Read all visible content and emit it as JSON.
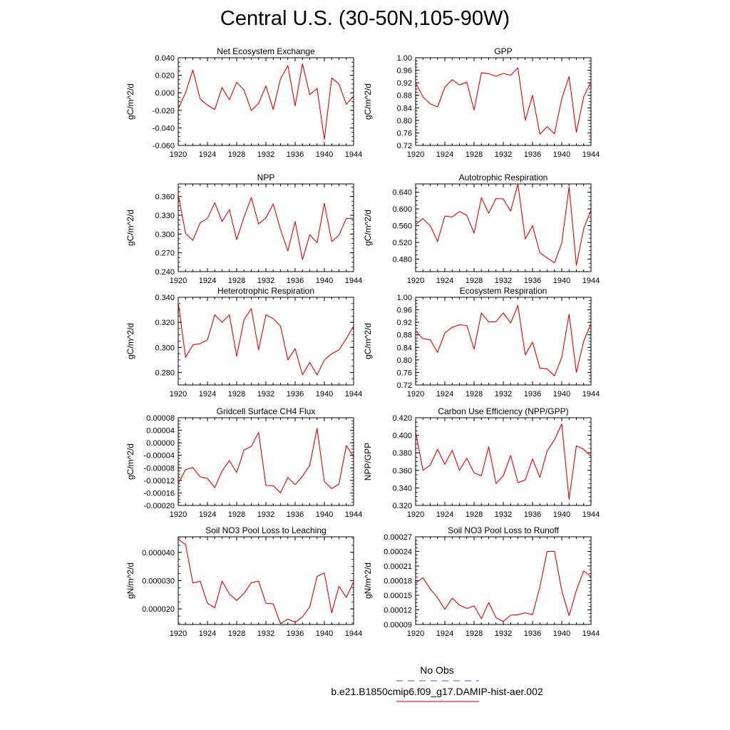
{
  "page": {
    "title": "Central U.S. (30-50N,105-90W)"
  },
  "legend": {
    "items": [
      {
        "label": "No Obs",
        "color": "#7070d8",
        "style": "dashed"
      },
      {
        "label": "b.e21.B1850cmip6.f09_g17.DAMIP-hist-aer.002",
        "color": "#e8263a",
        "style": "solid"
      }
    ]
  },
  "chart_data": [
    {
      "type": "line",
      "title": "Net Ecosystem Exchange",
      "ylabel": "gC/m^2/d",
      "xlim": [
        1920,
        1944
      ],
      "ylim": [
        -0.06,
        0.04
      ],
      "yticks": [
        "0.040",
        "0.020",
        "0.000",
        "-0.020",
        "-0.040",
        "-0.060"
      ],
      "ytick_values": [
        0.04,
        0.02,
        0.0,
        -0.02,
        -0.04,
        -0.06
      ],
      "xticks": [
        "1920",
        "1924",
        "1928",
        "1932",
        "1936",
        "1940",
        "1944"
      ],
      "x": [
        1920,
        1921,
        1922,
        1923,
        1924,
        1925,
        1926,
        1927,
        1928,
        1929,
        1930,
        1931,
        1932,
        1933,
        1934,
        1935,
        1936,
        1937,
        1938,
        1939,
        1940,
        1941,
        1942,
        1943,
        1944
      ],
      "series": [
        {
          "color": "#e00000",
          "values": [
            -0.018,
            0.0,
            0.026,
            -0.007,
            -0.014,
            -0.019,
            0.006,
            -0.008,
            0.012,
            0.003,
            -0.02,
            -0.012,
            0.008,
            -0.019,
            0.016,
            0.031,
            -0.015,
            0.033,
            -0.002,
            0.005,
            -0.053,
            0.017,
            0.01,
            -0.013,
            -0.004
          ]
        }
      ]
    },
    {
      "type": "line",
      "title": "GPP",
      "ylabel": "gC/m^2/d",
      "xlim": [
        1920,
        1944
      ],
      "ylim": [
        0.72,
        1.0
      ],
      "yticks": [
        "1.00",
        "0.96",
        "0.92",
        "0.88",
        "0.84",
        "0.80",
        "0.76",
        "0.72"
      ],
      "ytick_values": [
        1.0,
        0.96,
        0.92,
        0.88,
        0.84,
        0.8,
        0.76,
        0.72
      ],
      "xticks": [
        "1920",
        "1924",
        "1928",
        "1932",
        "1936",
        "1940",
        "1944"
      ],
      "x": [
        1920,
        1921,
        1922,
        1923,
        1924,
        1925,
        1926,
        1927,
        1928,
        1929,
        1930,
        1931,
        1932,
        1933,
        1934,
        1935,
        1936,
        1937,
        1938,
        1939,
        1940,
        1941,
        1942,
        1943,
        1944
      ],
      "series": [
        {
          "color": "#e00000",
          "values": [
            0.92,
            0.875,
            0.853,
            0.843,
            0.906,
            0.93,
            0.913,
            0.922,
            0.833,
            0.952,
            0.949,
            0.941,
            0.95,
            0.944,
            0.968,
            0.8,
            0.88,
            0.756,
            0.78,
            0.757,
            0.869,
            0.94,
            0.762,
            0.875,
            0.923
          ]
        }
      ]
    },
    {
      "type": "line",
      "title": "NPP",
      "ylabel": "gC/m^2/d",
      "xlim": [
        1920,
        1944
      ],
      "ylim": [
        0.24,
        0.38
      ],
      "yticks": [
        "0.360",
        "0.330",
        "0.300",
        "0.270",
        "0.240"
      ],
      "ytick_values": [
        0.36,
        0.33,
        0.3,
        0.27,
        0.24
      ],
      "xticks": [
        "1920",
        "1924",
        "1928",
        "1932",
        "1936",
        "1940",
        "1944"
      ],
      "x": [
        1920,
        1921,
        1922,
        1923,
        1924,
        1925,
        1926,
        1927,
        1928,
        1929,
        1930,
        1931,
        1932,
        1933,
        1934,
        1935,
        1936,
        1937,
        1938,
        1939,
        1940,
        1941,
        1942,
        1943,
        1944
      ],
      "series": [
        {
          "color": "#e00000",
          "values": [
            0.363,
            0.301,
            0.29,
            0.318,
            0.325,
            0.35,
            0.32,
            0.339,
            0.291,
            0.327,
            0.358,
            0.316,
            0.326,
            0.348,
            0.307,
            0.273,
            0.32,
            0.259,
            0.299,
            0.286,
            0.349,
            0.288,
            0.298,
            0.325,
            0.325
          ]
        }
      ]
    },
    {
      "type": "line",
      "title": "Autotrophic Respiration",
      "ylabel": "gC/m^2/d",
      "xlim": [
        1920,
        1944
      ],
      "ylim": [
        0.45,
        0.66
      ],
      "yticks": [
        "0.640",
        "0.600",
        "0.560",
        "0.520",
        "0.480"
      ],
      "ytick_values": [
        0.64,
        0.6,
        0.56,
        0.52,
        0.48
      ],
      "xticks": [
        "1920",
        "1924",
        "1928",
        "1932",
        "1936",
        "1940",
        "1944"
      ],
      "x": [
        1920,
        1921,
        1922,
        1923,
        1924,
        1925,
        1926,
        1927,
        1928,
        1929,
        1930,
        1931,
        1932,
        1933,
        1934,
        1935,
        1936,
        1937,
        1938,
        1939,
        1940,
        1941,
        1942,
        1943,
        1944
      ],
      "series": [
        {
          "color": "#e00000",
          "values": [
            0.563,
            0.577,
            0.56,
            0.522,
            0.583,
            0.581,
            0.594,
            0.585,
            0.542,
            0.627,
            0.59,
            0.625,
            0.624,
            0.595,
            0.66,
            0.528,
            0.56,
            0.495,
            0.483,
            0.471,
            0.518,
            0.653,
            0.465,
            0.553,
            0.598
          ]
        }
      ]
    },
    {
      "type": "line",
      "title": "Heterotrophic Respiration",
      "ylabel": "gC/m^2/d",
      "xlim": [
        1920,
        1944
      ],
      "ylim": [
        0.27,
        0.34
      ],
      "yticks": [
        "0.340",
        "0.320",
        "0.300",
        "0.280"
      ],
      "ytick_values": [
        0.34,
        0.32,
        0.3,
        0.28
      ],
      "xticks": [
        "1920",
        "1924",
        "1928",
        "1932",
        "1936",
        "1940",
        "1944"
      ],
      "x": [
        1920,
        1921,
        1922,
        1923,
        1924,
        1925,
        1926,
        1927,
        1928,
        1929,
        1930,
        1931,
        1932,
        1933,
        1934,
        1935,
        1936,
        1937,
        1938,
        1939,
        1940,
        1941,
        1942,
        1943,
        1944
      ],
      "series": [
        {
          "color": "#e00000",
          "values": [
            0.336,
            0.292,
            0.302,
            0.303,
            0.306,
            0.326,
            0.32,
            0.326,
            0.293,
            0.322,
            0.331,
            0.298,
            0.326,
            0.323,
            0.317,
            0.29,
            0.299,
            0.278,
            0.288,
            0.278,
            0.29,
            0.295,
            0.298,
            0.307,
            0.317
          ]
        }
      ]
    },
    {
      "type": "line",
      "title": "Ecosystem Respiration",
      "ylabel": "gC/m^2/d",
      "xlim": [
        1920,
        1944
      ],
      "ylim": [
        0.72,
        1.0
      ],
      "yticks": [
        "1.00",
        "0.96",
        "0.92",
        "0.88",
        "0.84",
        "0.80",
        "0.76",
        "0.72"
      ],
      "ytick_values": [
        1.0,
        0.96,
        0.92,
        0.88,
        0.84,
        0.8,
        0.76,
        0.72
      ],
      "xticks": [
        "1920",
        "1924",
        "1928",
        "1932",
        "1936",
        "1940",
        "1944"
      ],
      "x": [
        1920,
        1921,
        1922,
        1923,
        1924,
        1925,
        1926,
        1927,
        1928,
        1929,
        1930,
        1931,
        1932,
        1933,
        1934,
        1935,
        1936,
        1937,
        1938,
        1939,
        1940,
        1941,
        1942,
        1943,
        1944
      ],
      "series": [
        {
          "color": "#e00000",
          "values": [
            0.892,
            0.868,
            0.864,
            0.824,
            0.886,
            0.904,
            0.912,
            0.91,
            0.834,
            0.95,
            0.921,
            0.922,
            0.95,
            0.918,
            0.974,
            0.816,
            0.857,
            0.774,
            0.771,
            0.749,
            0.808,
            0.946,
            0.76,
            0.86,
            0.916
          ]
        }
      ]
    },
    {
      "type": "line",
      "title": "Gridcell Surface CH4 Flux",
      "ylabel": "gC/m^2/d",
      "xlim": [
        1920,
        1944
      ],
      "ylim": [
        -0.0002,
        8e-05
      ],
      "yticks": [
        "0.00008",
        "0.00004",
        "0.00000",
        "-0.00004",
        "-0.00008",
        "-0.00012",
        "-0.00016",
        "-0.00020"
      ],
      "ytick_values": [
        8e-05,
        4e-05,
        0.0,
        -4e-05,
        -8e-05,
        -0.00012,
        -0.00016,
        -0.0002
      ],
      "xticks": [
        "1920",
        "1924",
        "1928",
        "1932",
        "1936",
        "1940",
        "1944"
      ],
      "x": [
        1920,
        1921,
        1922,
        1923,
        1924,
        1925,
        1926,
        1927,
        1928,
        1929,
        1930,
        1931,
        1932,
        1933,
        1934,
        1935,
        1936,
        1937,
        1938,
        1939,
        1940,
        1941,
        1942,
        1943,
        1944
      ],
      "series": [
        {
          "color": "#e00000",
          "values": [
            -0.00013,
            -8.6e-05,
            -7.9e-05,
            -0.000109,
            -0.000114,
            -0.000143,
            -9e-05,
            -5.7e-05,
            -9.5e-05,
            -2.3e-05,
            -1.1e-05,
            3.3e-05,
            -0.000136,
            -0.000137,
            -0.00016,
            -0.000111,
            -0.000134,
            -0.000107,
            -7.2e-05,
            4.6e-05,
            -0.000124,
            -0.000146,
            -0.000132,
            -9e-06,
            -4.5e-05
          ]
        }
      ]
    },
    {
      "type": "line",
      "title": "Carbon Use Efficiency (NPP/GPP)",
      "ylabel": "NPP/GPP",
      "xlim": [
        1920,
        1944
      ],
      "ylim": [
        0.32,
        0.42
      ],
      "yticks": [
        "0.420",
        "0.400",
        "0.380",
        "0.360",
        "0.340",
        "0.320"
      ],
      "ytick_values": [
        0.42,
        0.4,
        0.38,
        0.36,
        0.34,
        0.32
      ],
      "xticks": [
        "1920",
        "1924",
        "1928",
        "1932",
        "1936",
        "1940",
        "1944"
      ],
      "x": [
        1920,
        1921,
        1922,
        1923,
        1924,
        1925,
        1926,
        1927,
        1928,
        1929,
        1930,
        1931,
        1932,
        1933,
        1934,
        1935,
        1936,
        1937,
        1938,
        1939,
        1940,
        1941,
        1942,
        1943,
        1944
      ],
      "series": [
        {
          "color": "#e00000",
          "values": [
            0.404,
            0.36,
            0.366,
            0.384,
            0.367,
            0.383,
            0.36,
            0.374,
            0.357,
            0.354,
            0.387,
            0.345,
            0.354,
            0.377,
            0.346,
            0.349,
            0.373,
            0.352,
            0.382,
            0.395,
            0.413,
            0.327,
            0.388,
            0.384,
            0.376
          ]
        }
      ]
    },
    {
      "type": "line",
      "title": "Soil NO3 Pool Loss to Leaching",
      "ylabel": "gN/m^2/d",
      "xlim": [
        1920,
        1944
      ],
      "ylim": [
        1.45e-05,
        4.55e-05
      ],
      "yticks": [
        "0.000040",
        "0.000030",
        "0.000020"
      ],
      "ytick_values": [
        4e-05,
        3e-05,
        2e-05
      ],
      "xticks": [
        "1920",
        "1924",
        "1928",
        "1932",
        "1936",
        "1940",
        "1944"
      ],
      "x": [
        1920,
        1921,
        1922,
        1923,
        1924,
        1925,
        1926,
        1927,
        1928,
        1929,
        1930,
        1931,
        1932,
        1933,
        1934,
        1935,
        1936,
        1937,
        1938,
        1939,
        1940,
        1941,
        1942,
        1943,
        1944
      ],
      "series": [
        {
          "color": "#e00000",
          "values": [
            4.46e-05,
            4.28e-05,
            2.92e-05,
            2.98e-05,
            2.2e-05,
            2.04e-05,
            2.98e-05,
            2.53e-05,
            2.3e-05,
            2.55e-05,
            2.93e-05,
            2.98e-05,
            2.2e-05,
            2.18e-05,
            1.48e-05,
            1.64e-05,
            1.53e-05,
            1.72e-05,
            2.07e-05,
            3.15e-05,
            3.27e-05,
            1.86e-05,
            2.8e-05,
            2.41e-05,
            2.96e-05
          ]
        }
      ]
    },
    {
      "type": "line",
      "title": "Soil NO3 Pool Loss to Runoff",
      "ylabel": "gN/m^2/d",
      "xlim": [
        1920,
        1944
      ],
      "ylim": [
        9e-05,
        0.00027
      ],
      "yticks": [
        "0.00027",
        "0.00024",
        "0.00021",
        "0.00018",
        "0.00015",
        "0.00012",
        "0.00009"
      ],
      "ytick_values": [
        0.00027,
        0.00024,
        0.00021,
        0.00018,
        0.00015,
        0.00012,
        9e-05
      ],
      "xticks": [
        "1920",
        "1924",
        "1928",
        "1932",
        "1936",
        "1940",
        "1944"
      ],
      "x": [
        1920,
        1921,
        1922,
        1923,
        1924,
        1925,
        1926,
        1927,
        1928,
        1929,
        1930,
        1931,
        1932,
        1933,
        1934,
        1935,
        1936,
        1937,
        1938,
        1939,
        1940,
        1941,
        1942,
        1943,
        1944
      ],
      "series": [
        {
          "color": "#e00000",
          "values": [
            0.000175,
            0.000186,
            0.000163,
            0.000145,
            0.000121,
            0.000144,
            0.00013,
            0.000123,
            0.000128,
            0.000102,
            0.000135,
            0.000104,
            9.6e-05,
            0.000109,
            0.00011,
            0.000114,
            0.00011,
            0.000167,
            0.00024,
            0.00024,
            0.00016,
            0.000108,
            0.00016,
            0.0002,
            0.000188
          ]
        }
      ]
    }
  ]
}
